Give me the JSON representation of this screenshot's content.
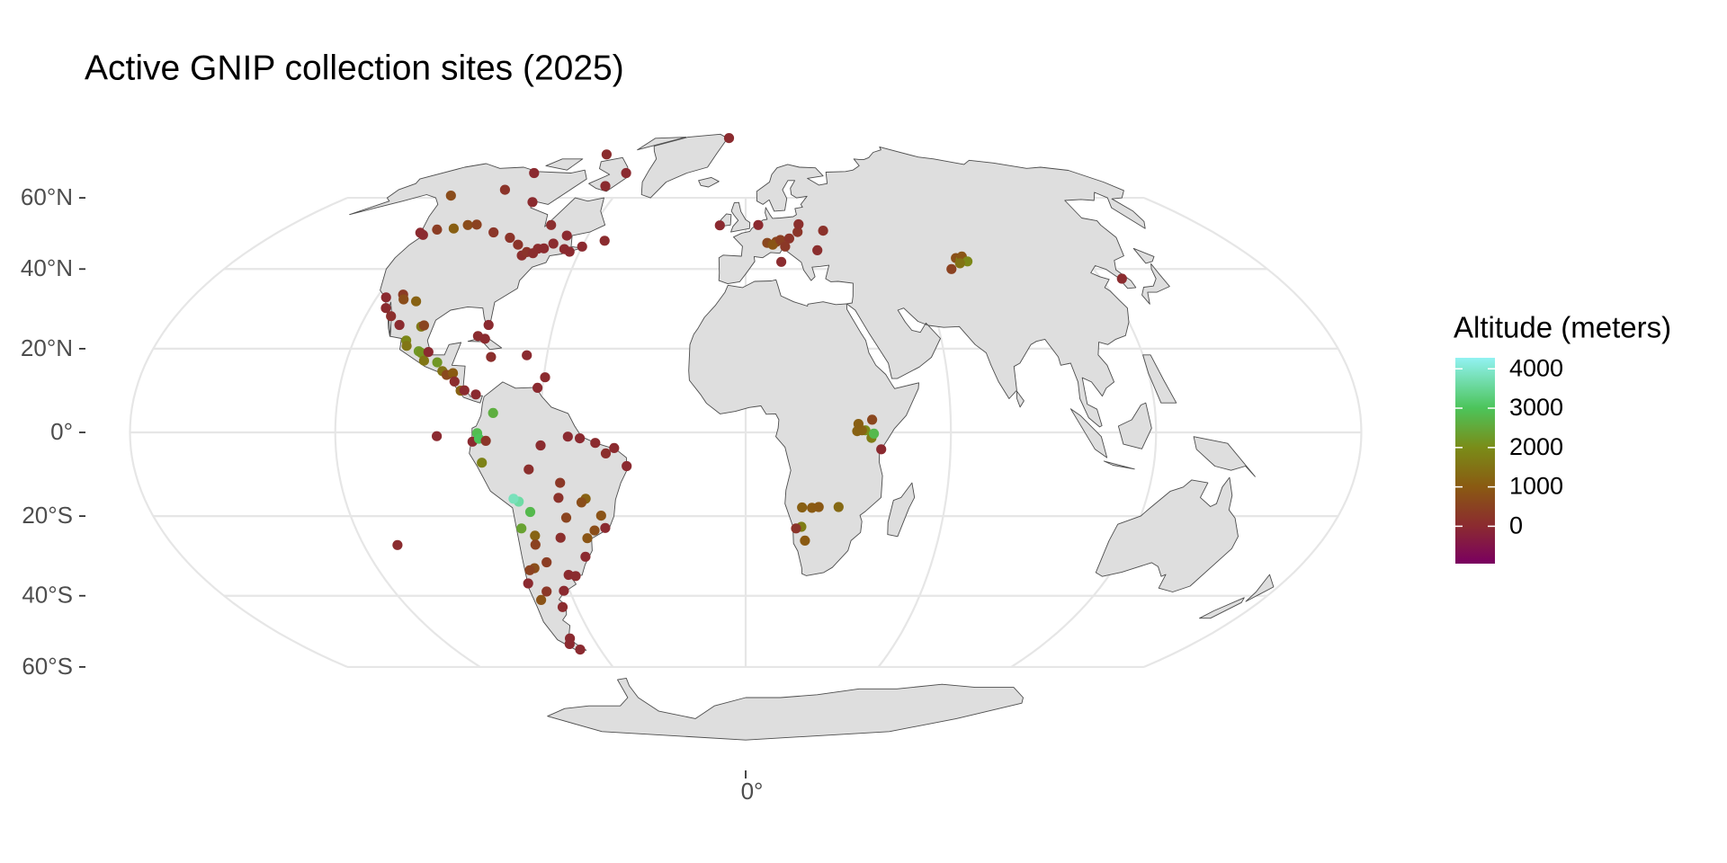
{
  "chart_data": {
    "type": "map",
    "projection": "mollweide",
    "title": "Active GNIP collection sites (2025)",
    "lon": [
      -16.7,
      -94.9,
      -68.5,
      -65,
      -115,
      -114.4,
      -94,
      -135,
      -123,
      -125,
      -120,
      -114,
      -110,
      -106.6,
      -97,
      -89,
      -80,
      -75.7,
      -73.6,
      -71.2,
      -66,
      -63.6,
      -60,
      -52.7,
      -79,
      -76.5,
      -68,
      -84,
      -77,
      -117,
      -112,
      -106.5,
      -110.9,
      -115,
      -112,
      -108,
      -104,
      -103.3,
      -99.1,
      -98.2,
      -96.7,
      -101,
      -100.3,
      -96.1,
      -92.6,
      -90.5,
      -89,
      -87.2,
      -86.3,
      -84.1,
      -83,
      -79.5,
      -82.4,
      -80,
      -80.2,
      -76.8,
      -61.5,
      -59.6,
      -66.1,
      -74,
      -78.5,
      -79.9,
      -78,
      -77.5,
      -76,
      -90.3,
      -68.1,
      -69.5,
      -65.2,
      -69,
      -60,
      -52,
      -48.5,
      -44,
      -38.5,
      -35,
      -41,
      -47.9,
      -55,
      -63.9,
      -56,
      -54.6,
      -49.3,
      -43.9,
      -46.6,
      -43.2,
      -49.3,
      -51.2,
      -57.6,
      -65.4,
      -64.2,
      -68.8,
      -70.6,
      -58.4,
      -56.2,
      -62,
      -71.3,
      -68,
      -73,
      -65,
      -69.2,
      -68.3,
      -70.9,
      -109.4,
      -66,
      -10.2,
      5,
      11.4,
      8,
      10,
      13,
      16.4,
      14.5,
      20,
      21,
      30,
      26,
      12.5,
      74.6,
      76,
      77,
      78,
      75,
      71,
      127,
      36.8,
      35,
      37.5,
      34,
      32.6,
      39.7,
      33,
      37,
      17,
      20,
      22,
      28,
      17.1,
      15.5,
      18.5
    ],
    "lat": [
      81.6,
      74.7,
      63.7,
      68,
      68,
      62.5,
      58.7,
      60.7,
      49.2,
      49.8,
      50.7,
      51,
      52,
      52.1,
      49.9,
      48.4,
      43.6,
      45.4,
      45.5,
      46.8,
      45.3,
      44.6,
      46,
      47.6,
      44.5,
      44.2,
      49,
      46.5,
      52,
      32.7,
      33.4,
      31.7,
      32.2,
      30,
      28,
      25.8,
      22,
      20.7,
      19.4,
      19,
      17.1,
      25.4,
      25.7,
      19.2,
      16.7,
      14.6,
      13.7,
      14.1,
      12.1,
      9.9,
      10,
      9,
      23.1,
      22.4,
      25.8,
      18,
      10.6,
      13.1,
      18.4,
      4.6,
      -0.2,
      -2.2,
      -1.5,
      -7.2,
      -2,
      -0.9,
      -16.5,
      -15.8,
      -19,
      -23,
      -3.1,
      -1,
      -1.4,
      -2.5,
      -3.7,
      -8,
      -5,
      -15.8,
      -12,
      -8.8,
      -15.6,
      -20.4,
      -16.7,
      -19.9,
      -23.5,
      -22.9,
      -25.4,
      -30,
      -25.3,
      -24.8,
      -31.4,
      -32.9,
      -33.4,
      -34.6,
      -34.9,
      -38.7,
      -41.1,
      -38.9,
      -36.8,
      -43,
      -51.6,
      -54.8,
      -53.2,
      -27.1,
      -27,
      51.9,
      52,
      47.3,
      47,
      46.5,
      47.8,
      48.2,
      46,
      50,
      52.2,
      50.4,
      45,
      41.9,
      42.9,
      42.5,
      43.3,
      42,
      41.5,
      40,
      37.5,
      -1.3,
      0.5,
      -0.3,
      0.5,
      0.3,
      -4,
      2,
      3,
      -17.9,
      -18,
      -17.8,
      -17.8,
      -22.6,
      -23,
      -26
    ],
    "altitude": [
      30,
      70,
      30,
      0,
      0,
      200,
      20,
      700,
      0,
      10,
      400,
      1100,
      700,
      500,
      240,
      200,
      100,
      70,
      30,
      50,
      20,
      10,
      10,
      50,
      200,
      80,
      10,
      200,
      80,
      10,
      340,
      1150,
      730,
      20,
      100,
      20,
      1900,
      1560,
      2240,
      2130,
      1550,
      1600,
      540,
      10,
      2200,
      1500,
      650,
      1000,
      80,
      1150,
      20,
      10,
      50,
      20,
      0,
      100,
      10,
      30,
      10,
      2600,
      2850,
      10,
      3000,
      1800,
      250,
      10,
      3630,
      3820,
      2800,
      2400,
      50,
      10,
      10,
      30,
      20,
      10,
      100,
      1150,
      300,
      100,
      170,
      550,
      750,
      850,
      750,
      10,
      900,
      10,
      100,
      1200,
      400,
      750,
      500,
      20,
      40,
      10,
      850,
      270,
      10,
      50,
      10,
      10,
      10,
      50,
      500,
      10,
      10,
      580,
      600,
      900,
      430,
      200,
      300,
      220,
      100,
      170,
      80,
      50,
      800,
      1700,
      900,
      1900,
      1500,
      500,
      40,
      1700,
      2000,
      2800,
      1200,
      1150,
      10,
      1100,
      600,
      1100,
      1000,
      950,
      1300,
      1700,
      200,
      1000
    ],
    "yticks": [
      {
        "value": -60,
        "label": "60°S"
      },
      {
        "value": -40,
        "label": "40°S"
      },
      {
        "value": -20,
        "label": "20°S"
      },
      {
        "value": 0,
        "label": "0°"
      },
      {
        "value": 20,
        "label": "20°N"
      },
      {
        "value": 40,
        "label": "40°N"
      },
      {
        "value": 60,
        "label": "60°N"
      }
    ],
    "xticks": [
      {
        "value": 0,
        "label": "0°"
      }
    ],
    "grid": true,
    "land_color": "#dedede",
    "legend": {
      "title": "Altitude (meters)",
      "position": "right",
      "lim": [
        -950,
        4280
      ],
      "ticks": [
        0,
        1000,
        2000,
        3000,
        4000
      ],
      "colorscale": [
        [
          -950,
          "#7a0060"
        ],
        [
          0,
          "#8b2a30"
        ],
        [
          1000,
          "#8a5a12"
        ],
        [
          2000,
          "#7a8c18"
        ],
        [
          3000,
          "#4cc45a"
        ],
        [
          4280,
          "#92f2f2"
        ]
      ]
    }
  }
}
